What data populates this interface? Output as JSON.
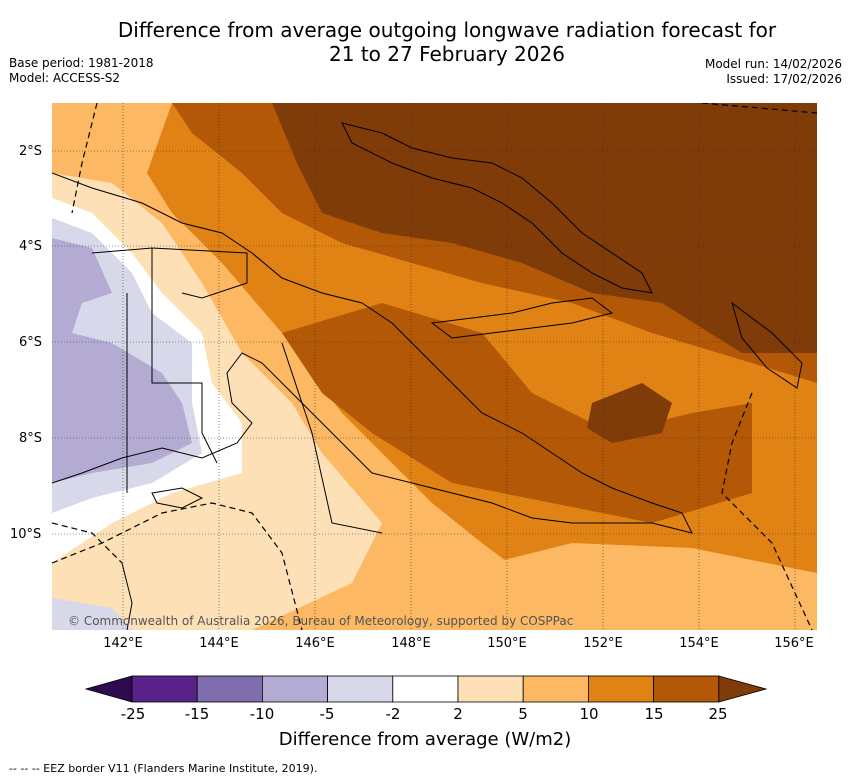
{
  "title_line1": "Difference from average outgoing longwave radiation forecast for",
  "title_line2": "21 to 27 February 2026",
  "base_period": "Base period: 1981-2018",
  "model": "Model: ACCESS-S2",
  "model_run": "Model run: 14/02/2026",
  "issued": "Issued: 17/02/2026",
  "lat_labels": [
    "2°S",
    "4°S",
    "6°S",
    "8°S",
    "10°S"
  ],
  "lon_labels": [
    "142°E",
    "144°E",
    "146°E",
    "148°E",
    "150°E",
    "152°E",
    "154°E",
    "156°E"
  ],
  "credit": "© Commonwealth of Australia 2026, Bureau of Meteorology, supported by COSPPac",
  "colorbar": {
    "labels": [
      "-25",
      "-15",
      "-10",
      "-5",
      "-2",
      "2",
      "5",
      "10",
      "15",
      "25"
    ],
    "colors": [
      "#2f0a4f",
      "#57238a",
      "#7f6dad",
      "#b3abd2",
      "#d8d8eb",
      "#ffffff",
      "#fee0b6",
      "#fdb863",
      "#e08214",
      "#b35806",
      "#7f3b08"
    ],
    "title": "Difference from average (W/m2)"
  },
  "footer": "-- -- -- EEZ border V11 (Flanders Marine Institute, 2019)."
}
